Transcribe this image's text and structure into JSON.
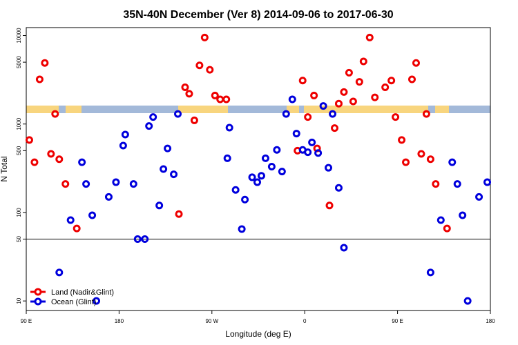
{
  "chart_data": {
    "type": "scatter",
    "title": "35N-40N December (Ver 8)   2014-09-06 to 2017-06-30",
    "x_label": "Longitude (deg E)",
    "y_label": "N Total",
    "log_y": true,
    "legend": "lower left",
    "hline": 50,
    "xlim": [
      90,
      540
    ],
    "ylim": [
      7.8,
      12300
    ],
    "xticks": [
      {
        "value": 90,
        "label": "90 E"
      },
      180,
      {
        "value": 270,
        "label": "90 W"
      },
      {
        "value": 360,
        "label": "0"
      },
      {
        "value": 450,
        "label": "90 E"
      },
      {
        "value": 540,
        "label": "180"
      }
    ],
    "yticks": [
      10,
      50,
      100,
      500,
      1000,
      5000,
      10000
    ],
    "series": [
      {
        "name": "Land (Nadir&Glint)",
        "color": "#ee0000",
        "x": [
          93,
          98,
          103,
          108,
          114,
          118,
          122,
          128,
          139,
          238,
          244,
          248,
          253,
          258,
          263,
          268,
          273,
          278,
          284,
          353,
          358,
          363,
          369,
          372,
          384,
          389,
          393,
          398,
          403,
          407,
          413,
          417,
          423,
          428,
          438,
          444,
          448,
          454,
          458,
          464,
          468,
          473,
          478,
          482,
          487,
          498
        ],
        "values": [
          660,
          370,
          3200,
          4900,
          460,
          1300,
          400,
          210,
          66,
          96,
          2600,
          2200,
          1100,
          4600,
          9500,
          4100,
          2100,
          1900,
          1900,
          500,
          3100,
          1200,
          2100,
          530,
          120,
          900,
          1700,
          2300,
          3800,
          1800,
          3000,
          5100,
          9500,
          2000,
          2600,
          3100,
          1200,
          660,
          370,
          3200,
          4900,
          460,
          1300,
          400,
          210,
          66
        ]
      },
      {
        "name": "Ocean (Glint)",
        "color": "#0000dd",
        "x": [
          122,
          133,
          144,
          148,
          154,
          158,
          170,
          177,
          184,
          186,
          194,
          198,
          205,
          209,
          213,
          219,
          223,
          227,
          233,
          237,
          287,
          285,
          293,
          299,
          302,
          309,
          314,
          318,
          322,
          328,
          333,
          338,
          342,
          348,
          352,
          358,
          363,
          367,
          373,
          378,
          383,
          387,
          393,
          398,
          482,
          492,
          503,
          508,
          513,
          518,
          529,
          537
        ],
        "values": [
          21,
          82,
          370,
          210,
          93,
          10,
          150,
          220,
          570,
          760,
          210,
          50,
          50,
          950,
          1200,
          120,
          310,
          530,
          270,
          1300,
          910,
          410,
          180,
          65,
          140,
          250,
          220,
          260,
          410,
          330,
          510,
          290,
          1300,
          1900,
          780,
          510,
          480,
          620,
          470,
          1600,
          320,
          1300,
          190,
          40,
          21,
          82,
          370,
          210,
          93,
          10,
          150,
          220
        ]
      }
    ]
  }
}
